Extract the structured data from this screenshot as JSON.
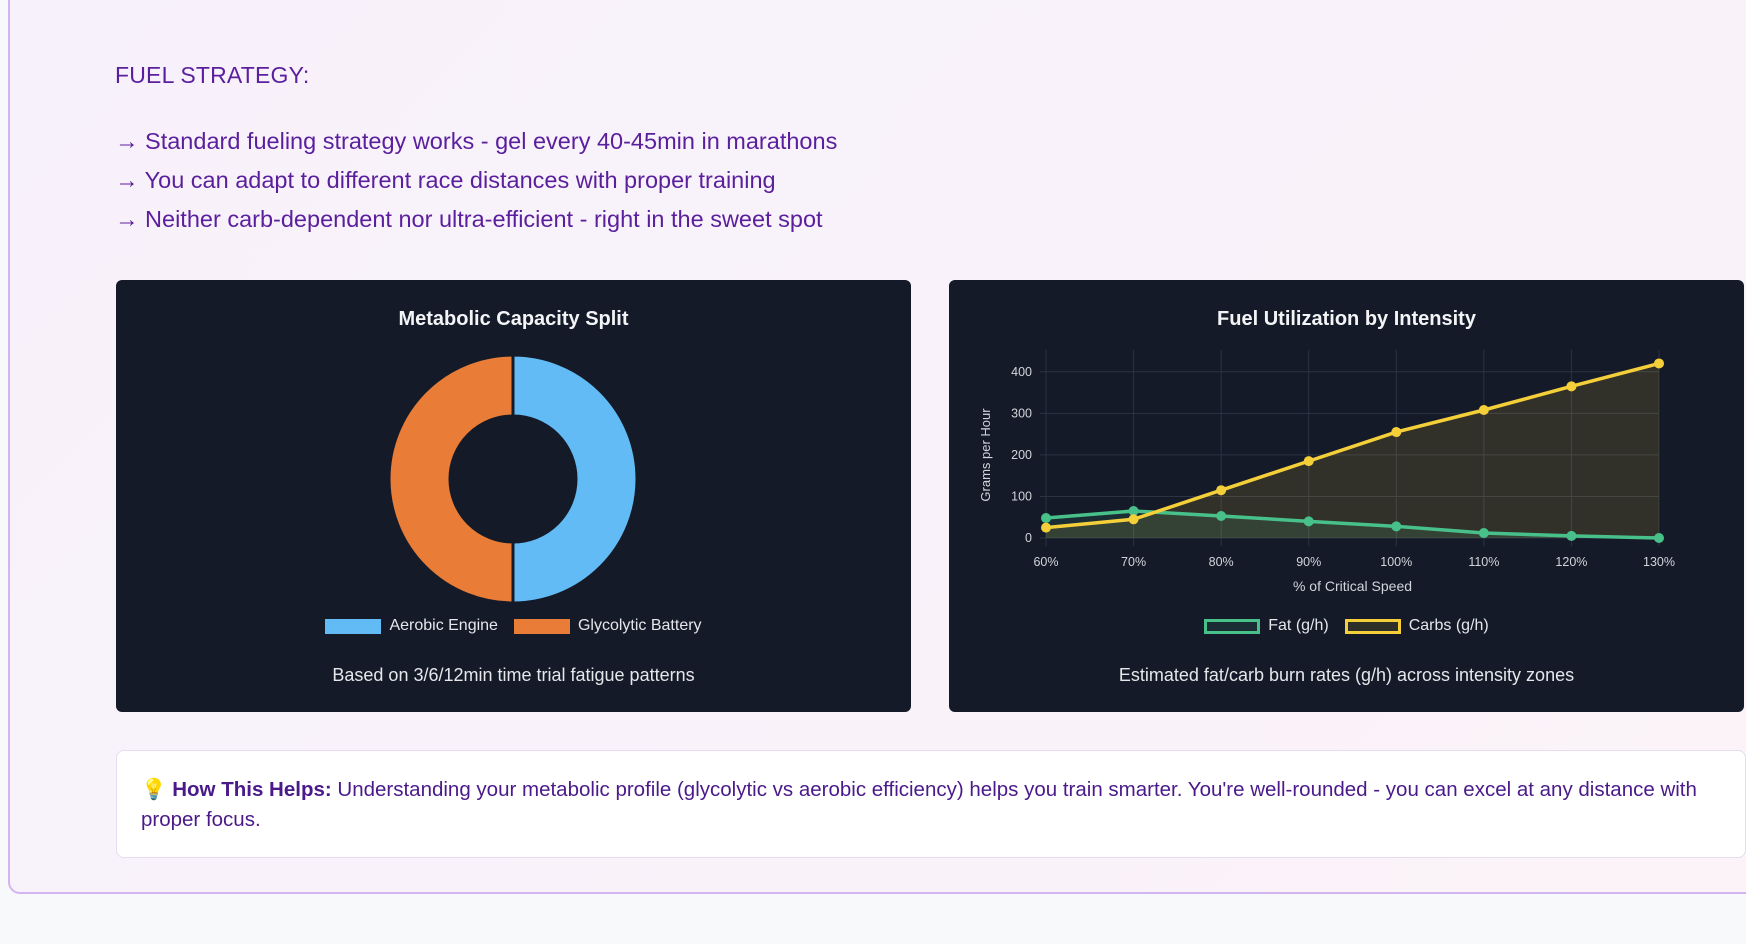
{
  "fuel_strategy": {
    "heading": "FUEL STRATEGY:",
    "lines": [
      "→ Standard fueling strategy works - gel every 40-45min in marathons",
      "→ You can adapt to different race distances with proper training",
      "→ Neither carb-dependent nor ultra-efficient - right in the sweet spot"
    ]
  },
  "colors": {
    "aerobic": "#62bbf4",
    "glycolytic": "#e97c36",
    "fat": "#48c08a",
    "carbs": "#f5cf3a"
  },
  "chart_data": [
    {
      "type": "doughnut",
      "title": "Metabolic Capacity Split",
      "labels": [
        "Aerobic Engine",
        "Glycolytic Battery"
      ],
      "values": [
        50,
        50
      ],
      "legend": "bottom",
      "caption": "Based on 3/6/12min time trial fatigue patterns"
    },
    {
      "type": "line",
      "title": "Fuel Utilization by Intensity",
      "categories": [
        "60%",
        "70%",
        "80%",
        "90%",
        "100%",
        "110%",
        "120%",
        "130%"
      ],
      "xlabel": "% of Critical Speed",
      "ylabel": "Grams per Hour",
      "yticks": [
        "0",
        "100",
        "200",
        "300",
        "400"
      ],
      "ylim": [
        0,
        450
      ],
      "series": [
        {
          "name": "Fat (g/h)",
          "values": [
            48,
            65,
            53,
            40,
            28,
            12,
            5,
            0
          ]
        },
        {
          "name": "Carbs (g/h)",
          "values": [
            25,
            45,
            115,
            185,
            255,
            308,
            365,
            420
          ]
        }
      ],
      "grid": true,
      "legend": "bottom",
      "caption": "Estimated fat/carb burn rates (g/h) across intensity zones"
    }
  ],
  "tip": {
    "icon": "lightbulb-icon",
    "glyph": "💡",
    "label": "How This Helps:",
    "text": " Understanding your metabolic profile (glycolytic vs aerobic efficiency) helps you train smarter. You're well-rounded - you can excel at any distance with proper focus."
  }
}
